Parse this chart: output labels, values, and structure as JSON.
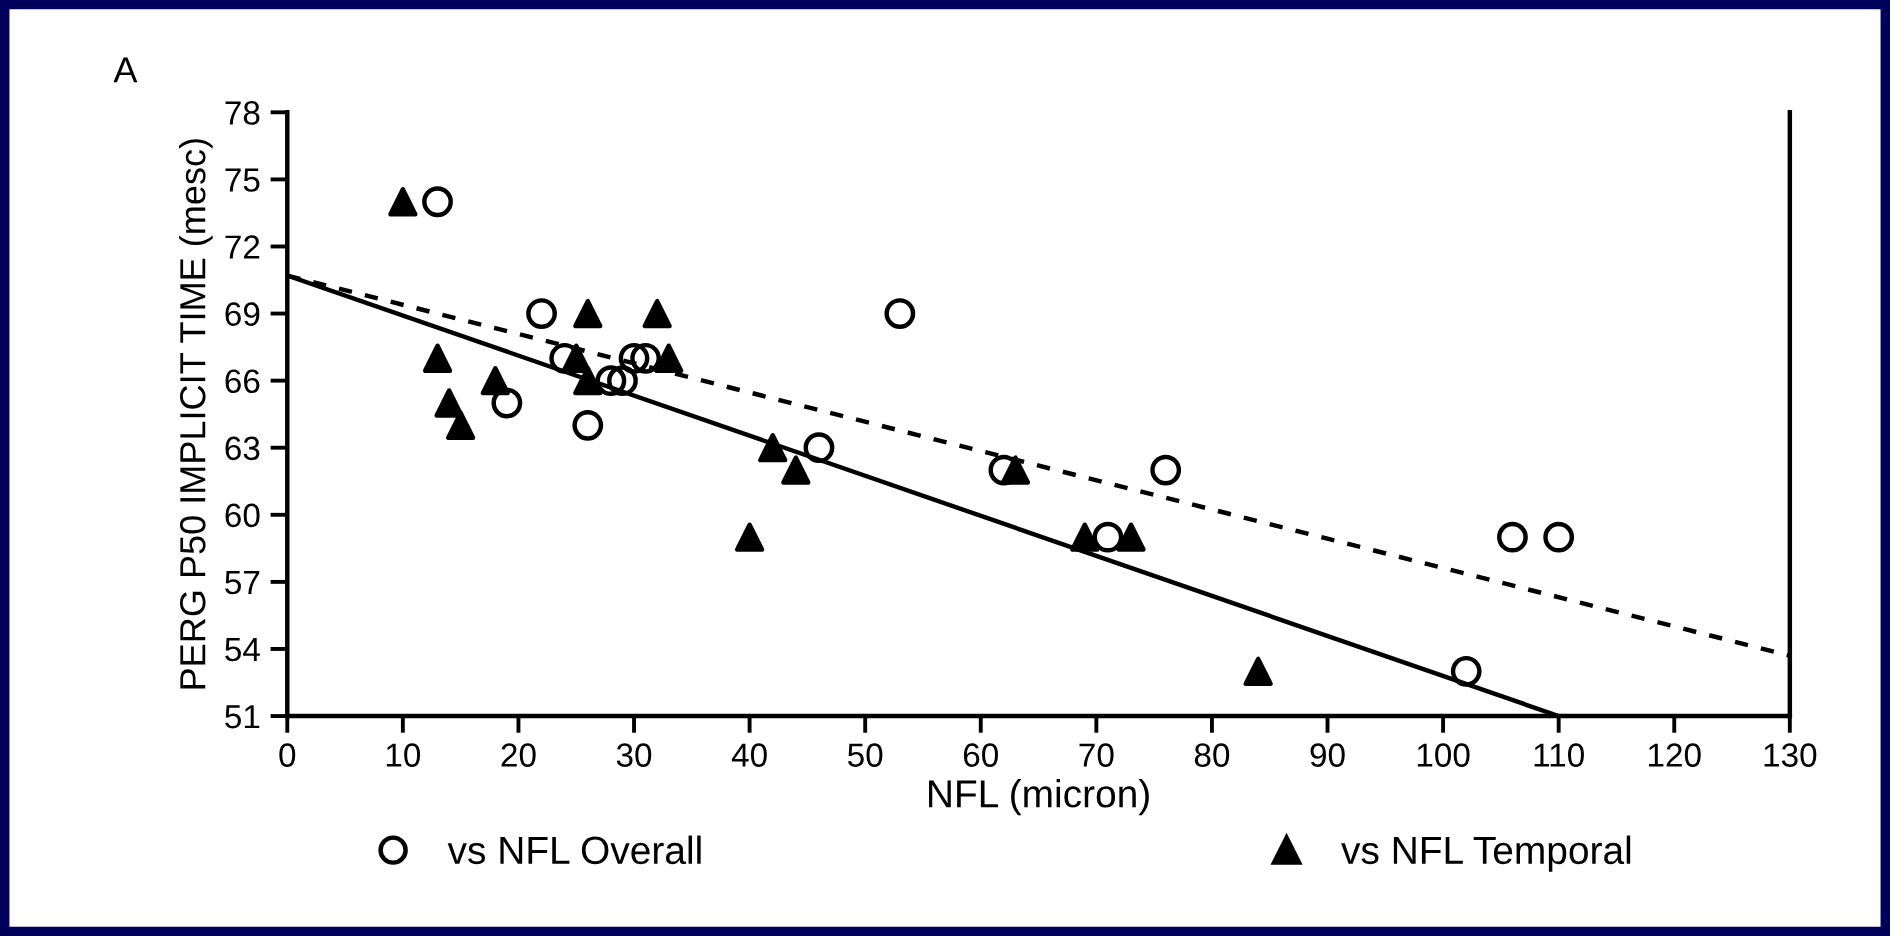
{
  "chart_data": {
    "type": "scatter",
    "xlabel": "NFL (micron)",
    "ylabel": "PERG P50 IMPLICIT TIME (mesc)",
    "annotations": [
      "A"
    ],
    "xlim": [
      0,
      130
    ],
    "ylim": [
      51,
      78
    ],
    "xticks": [
      0,
      10,
      20,
      30,
      40,
      50,
      60,
      70,
      80,
      90,
      100,
      110,
      120,
      130
    ],
    "yticks": [
      51,
      54,
      57,
      60,
      63,
      66,
      69,
      72,
      75,
      78
    ],
    "grid": false,
    "legend": "bottom",
    "series": [
      {
        "name": "vs NFL Overall",
        "color": "#000000",
        "marker": "circle",
        "x": [
          13,
          22,
          24,
          19,
          26,
          28,
          29,
          30,
          31,
          46,
          53,
          62,
          71,
          76,
          102,
          106,
          110
        ],
        "values": [
          74,
          69,
          67,
          65,
          64,
          66,
          66,
          67,
          67,
          63,
          69,
          62,
          59,
          62,
          53,
          59,
          59
        ]
      },
      {
        "name": "vs NFL Temporal",
        "color": "#000000",
        "marker": "triangle",
        "x": [
          10,
          13,
          14,
          15,
          18,
          25,
          26,
          26,
          32,
          33,
          40,
          42,
          44,
          63,
          69,
          73,
          84
        ],
        "values": [
          74,
          67,
          65,
          64,
          66,
          67,
          69,
          66,
          69,
          67,
          59,
          63,
          62,
          62,
          59,
          59,
          53
        ]
      },
      {
        "type": "line",
        "color": "#000000",
        "line_style": "solid",
        "x": [
          0,
          110
        ],
        "values": [
          70.7,
          51
        ]
      },
      {
        "type": "line",
        "color": "#000000",
        "line_style": "dashed",
        "x": [
          0,
          130
        ],
        "values": [
          70.7,
          53.7
        ]
      }
    ]
  }
}
